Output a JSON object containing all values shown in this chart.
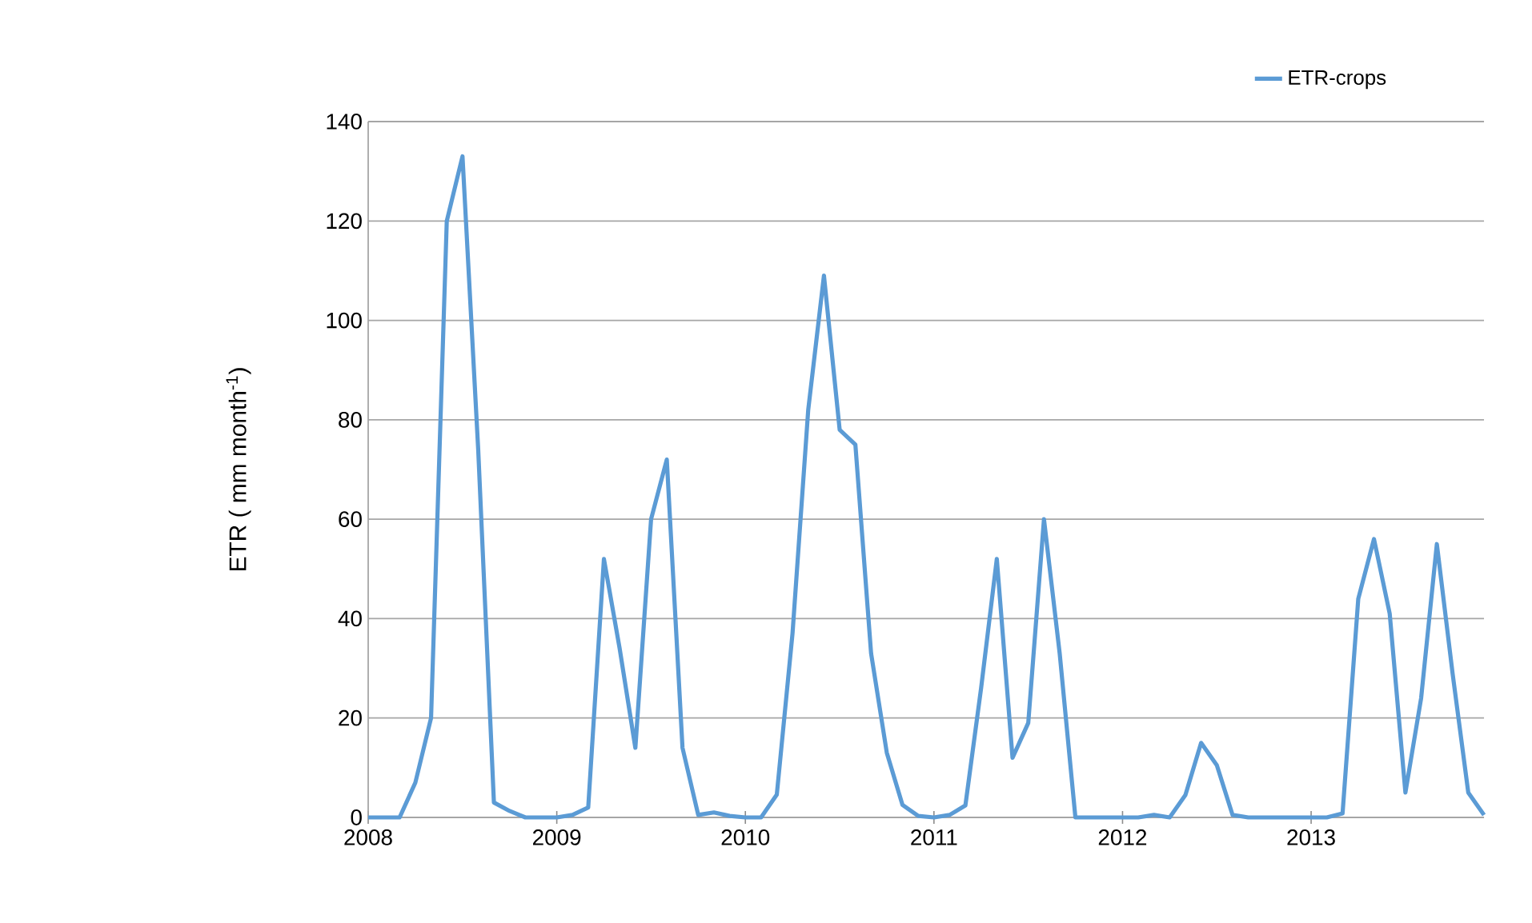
{
  "chart_data": {
    "type": "line",
    "ylabel": "ETR ( mm  month$^{-1}$)",
    "x": [
      "2008-01",
      "2008-02",
      "2008-03",
      "2008-04",
      "2008-05",
      "2008-06",
      "2008-07",
      "2008-08",
      "2008-09",
      "2008-10",
      "2008-11",
      "2008-12",
      "2009-01",
      "2009-02",
      "2009-03",
      "2009-04",
      "2009-05",
      "2009-06",
      "2009-07",
      "2009-08",
      "2009-09",
      "2009-10",
      "2009-11",
      "2009-12",
      "2010-01",
      "2010-02",
      "2010-03",
      "2010-04",
      "2010-05",
      "2010-06",
      "2010-07",
      "2010-08",
      "2010-09",
      "2010-10",
      "2010-11",
      "2010-12",
      "2011-01",
      "2011-02",
      "2011-03",
      "2011-04",
      "2011-05",
      "2011-06",
      "2011-07",
      "2011-08",
      "2011-09",
      "2011-10",
      "2011-11",
      "2011-12",
      "2012-01",
      "2012-02",
      "2012-03",
      "2012-04",
      "2012-05",
      "2012-06",
      "2012-07",
      "2012-08",
      "2012-09",
      "2012-10",
      "2012-11",
      "2012-12",
      "2013-01",
      "2013-02",
      "2013-03",
      "2013-04",
      "2013-05",
      "2013-06",
      "2013-07",
      "2013-08",
      "2013-09",
      "2013-10",
      "2013-11",
      "2013-12"
    ],
    "series": [
      {
        "name": "ETR-crops",
        "color": "#5b9bd5",
        "values": [
          0,
          0,
          0,
          7,
          20,
          120,
          133,
          74,
          3,
          1.3,
          0,
          0,
          0,
          0.5,
          2,
          52,
          34,
          14,
          60,
          72,
          14,
          0.5,
          1,
          0.3,
          0,
          0,
          4.6,
          37,
          82,
          109,
          78,
          75,
          33,
          13,
          2.5,
          0.3,
          0,
          0.5,
          2.4,
          26,
          52,
          12,
          19,
          60,
          33,
          0,
          0,
          0,
          0,
          0,
          0.5,
          0,
          4.5,
          15,
          10.5,
          0.5,
          0,
          0,
          0,
          0,
          0,
          0,
          0.8,
          44,
          56,
          41,
          5,
          24,
          55,
          29,
          5,
          0.5
        ]
      }
    ],
    "xlim": [
      "2008",
      "2013-12"
    ],
    "xticks": [
      "2008",
      "2009",
      "2010",
      "2011",
      "2012",
      "2013"
    ],
    "ylim": [
      0,
      140
    ],
    "yticks": [
      0,
      20,
      40,
      60,
      80,
      100,
      120,
      140
    ],
    "grid": "y",
    "legend": "top right",
    "marker": "none",
    "line_style": "solid"
  }
}
